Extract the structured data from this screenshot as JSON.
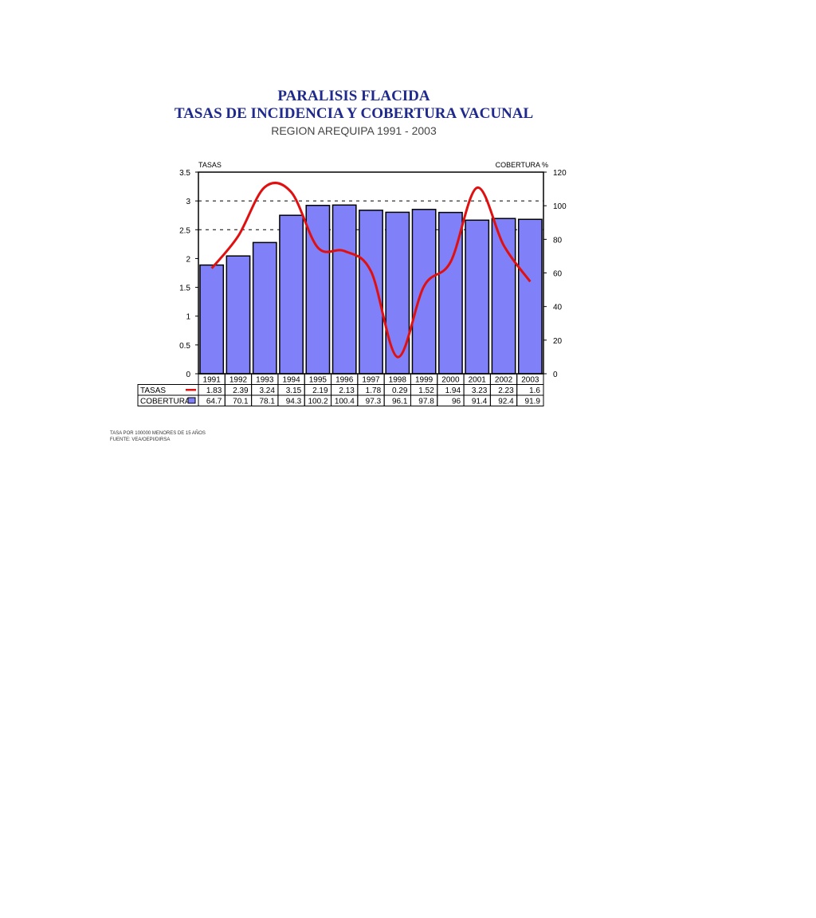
{
  "chart_data": {
    "type": "bar",
    "title": "PARALISIS FLACIDA",
    "subtitle": "TASAS DE INCIDENCIA Y COBERTURA VACUNAL",
    "subtitle2": "REGION  AREQUIPA 1991 - 2003",
    "ylabel_left": "TASAS",
    "ylabel_right": "COBERTURA %",
    "ylim_left": [
      0,
      3.5
    ],
    "ylim_right": [
      0,
      120
    ],
    "yticks_left": [
      "0",
      "0.5",
      "1",
      "1.5",
      "2",
      "2.5",
      "3",
      "3.5"
    ],
    "yticks_right": [
      "0",
      "20",
      "40",
      "60",
      "80",
      "100",
      "120"
    ],
    "grid": "dashed at 2.5 and 3",
    "categories": [
      "1991",
      "1992",
      "1993",
      "1994",
      "1995",
      "1996",
      "1997",
      "1998",
      "1999",
      "2000",
      "2001",
      "2002",
      "2003"
    ],
    "series": [
      {
        "name": "TASAS",
        "type": "line",
        "axis": "left",
        "color": "#e01010",
        "values": [
          1.83,
          2.39,
          3.24,
          3.15,
          2.19,
          2.13,
          1.78,
          0.29,
          1.52,
          1.94,
          3.23,
          2.23,
          1.6
        ],
        "labels": [
          "1.83",
          "2.39",
          "3.24",
          "3.15",
          "2.19",
          "2.13",
          "1.78",
          "0.29",
          "1.52",
          "1.94",
          "3.23",
          "2.23",
          "1.6"
        ]
      },
      {
        "name": "COBERTURA",
        "type": "bar",
        "axis": "right",
        "color": "#8080f8",
        "values": [
          64.7,
          70.1,
          78.1,
          94.3,
          100.2,
          100.4,
          97.3,
          96.1,
          97.8,
          96,
          91.4,
          92.4,
          91.9
        ],
        "labels": [
          "64.7",
          "70.1",
          "78.1",
          "94.3",
          "100.2",
          "100.4",
          "97.3",
          "96.1",
          "97.8",
          "96",
          "91.4",
          "92.4",
          "91.9"
        ]
      }
    ]
  },
  "notes": {
    "line1": "TASA POR 100000 MENORES DE 15 AÑOS",
    "line2": "FUENTE: VEA/OEPI/DIRSA"
  }
}
